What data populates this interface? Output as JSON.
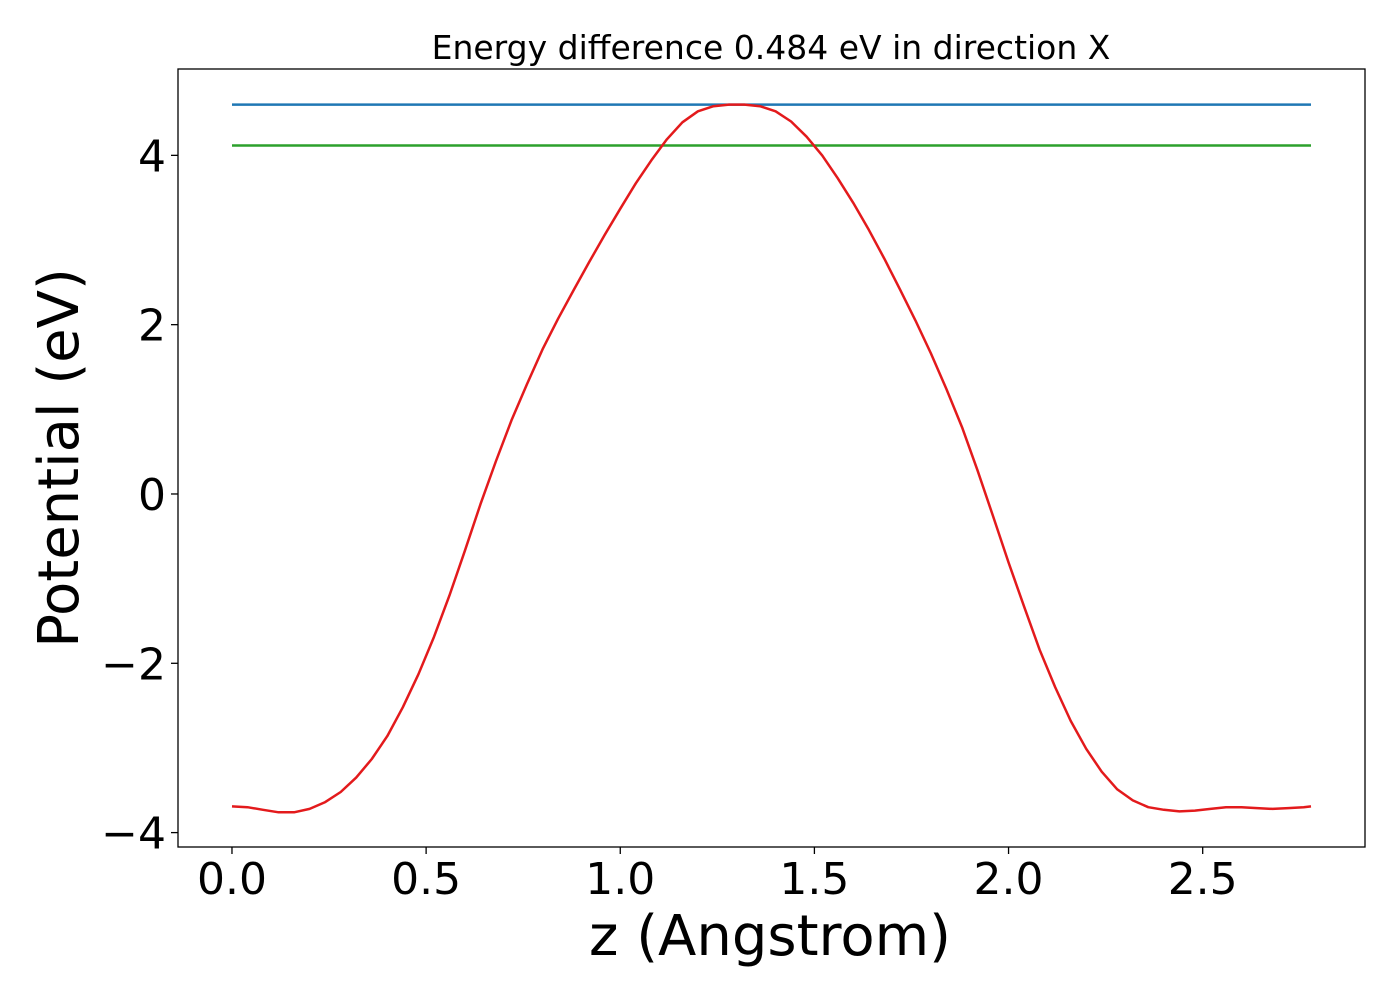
{
  "chart_data": {
    "type": "line",
    "title": "Energy difference 0.484 eV in direction X",
    "xlabel": "z (Angstrom)",
    "ylabel": "Potential (eV)",
    "xlim": [
      -0.139,
      2.918
    ],
    "ylim": [
      -4.17,
      5.02
    ],
    "xticks": [
      0.0,
      0.5,
      1.0,
      1.5,
      2.0,
      2.5
    ],
    "xtick_labels": [
      "0.0",
      "0.5",
      "1.0",
      "1.5",
      "2.0",
      "2.5"
    ],
    "yticks": [
      -4,
      -2,
      0,
      2,
      4
    ],
    "ytick_labels": [
      "−4",
      "−2",
      "0",
      "2",
      "4"
    ],
    "grid": false,
    "series": [
      {
        "color": "#1f77b4",
        "x": [
          0.0,
          2.779
        ],
        "y": [
          4.6,
          4.6
        ]
      },
      {
        "color": "#2ca02c",
        "x": [
          0.0,
          2.779
        ],
        "y": [
          4.116,
          4.116
        ]
      },
      {
        "color": "#e31a1c",
        "x": [
          0.0,
          0.04,
          0.08,
          0.12,
          0.16,
          0.2,
          0.24,
          0.28,
          0.32,
          0.36,
          0.4,
          0.44,
          0.48,
          0.52,
          0.56,
          0.6,
          0.64,
          0.68,
          0.72,
          0.76,
          0.8,
          0.84,
          0.88,
          0.92,
          0.96,
          1.0,
          1.04,
          1.08,
          1.12,
          1.16,
          1.2,
          1.24,
          1.28,
          1.32,
          1.36,
          1.4,
          1.44,
          1.48,
          1.52,
          1.56,
          1.6,
          1.64,
          1.68,
          1.72,
          1.76,
          1.8,
          1.84,
          1.88,
          1.92,
          1.96,
          2.0,
          2.04,
          2.08,
          2.12,
          2.16,
          2.2,
          2.24,
          2.28,
          2.32,
          2.36,
          2.4,
          2.44,
          2.48,
          2.52,
          2.56,
          2.6,
          2.64,
          2.68,
          2.72,
          2.76,
          2.779
        ],
        "y": [
          -3.69,
          -3.7,
          -3.73,
          -3.76,
          -3.76,
          -3.72,
          -3.64,
          -3.52,
          -3.35,
          -3.13,
          -2.86,
          -2.52,
          -2.13,
          -1.69,
          -1.2,
          -0.67,
          -0.12,
          0.39,
          0.87,
          1.3,
          1.71,
          2.07,
          2.41,
          2.74,
          3.06,
          3.37,
          3.67,
          3.94,
          4.19,
          4.39,
          4.52,
          4.58,
          4.6,
          4.6,
          4.58,
          4.52,
          4.4,
          4.22,
          4.0,
          3.73,
          3.44,
          3.12,
          2.78,
          2.42,
          2.05,
          1.66,
          1.24,
          0.79,
          0.28,
          -0.26,
          -0.81,
          -1.33,
          -1.84,
          -2.28,
          -2.68,
          -3.01,
          -3.28,
          -3.49,
          -3.62,
          -3.7,
          -3.73,
          -3.75,
          -3.74,
          -3.72,
          -3.7,
          -3.7,
          -3.71,
          -3.72,
          -3.71,
          -3.7,
          -3.69
        ]
      }
    ]
  }
}
